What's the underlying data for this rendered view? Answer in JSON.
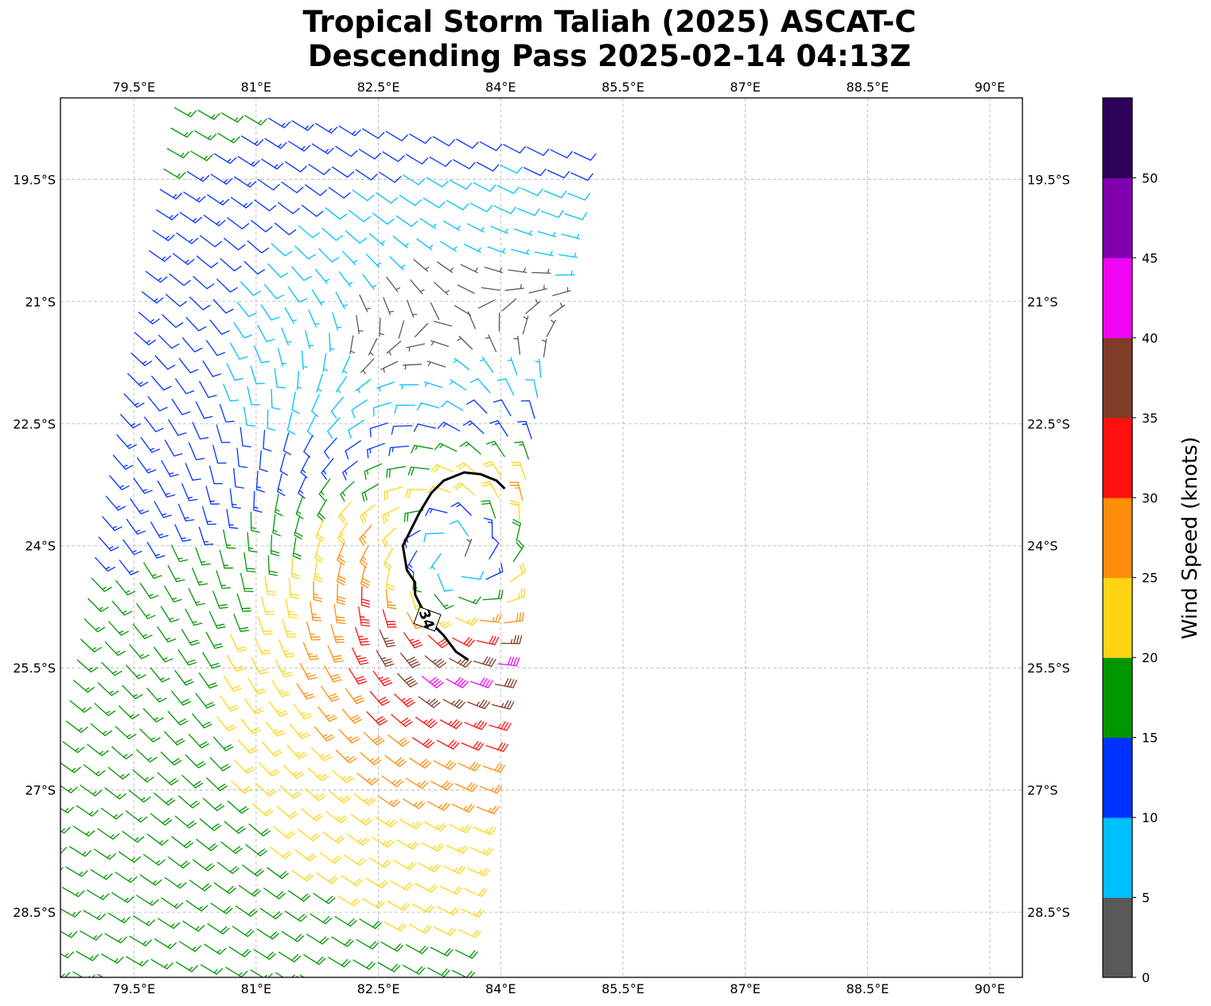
{
  "title": {
    "line1": "Tropical Storm Taliah (2025) ASCAT-C",
    "line2": "Descending Pass 2025-02-14 04:13Z"
  },
  "chart_data": {
    "type": "wind-barb-map",
    "title": "Tropical Storm Taliah (2025) ASCAT-C Descending Pass 2025-02-14 04:13Z",
    "lon_range": [
      78.6,
      90.4
    ],
    "lat_range": [
      -29.3,
      -18.5
    ],
    "x_ticks": [
      "79.5°E",
      "81°E",
      "82.5°E",
      "84°E",
      "85.5°E",
      "87°E",
      "88.5°E",
      "90°E"
    ],
    "x_tick_values": [
      79.5,
      81,
      82.5,
      84,
      85.5,
      87,
      88.5,
      90
    ],
    "y_ticks": [
      "19.5°S",
      "21°S",
      "22.5°S",
      "24°S",
      "25.5°S",
      "27°S",
      "28.5°S"
    ],
    "y_tick_values": [
      -19.5,
      -21,
      -22.5,
      -24,
      -25.5,
      -27,
      -28.5
    ],
    "grid": true,
    "units": "knots",
    "center": [
      83.5,
      -24.4
    ],
    "swath": {
      "top_lat": -18.5,
      "bottom_lat": -29.3,
      "left_edge_top_lon": 80.0,
      "left_edge_bottom_lon": 78.1,
      "right_edge_top_lon": 84.9,
      "right_edge_bottom_lon": 83.3
    },
    "contour": {
      "level": 34,
      "label": "34",
      "points": [
        [
          83.6,
          -25.4
        ],
        [
          83.45,
          -25.3
        ],
        [
          83.3,
          -25.1
        ],
        [
          83.1,
          -24.9
        ],
        [
          82.95,
          -24.6
        ],
        [
          82.95,
          -24.45
        ],
        [
          82.85,
          -24.3
        ],
        [
          82.8,
          -24.0
        ],
        [
          82.9,
          -23.8
        ],
        [
          83.0,
          -23.6
        ],
        [
          83.15,
          -23.35
        ],
        [
          83.3,
          -23.2
        ],
        [
          83.55,
          -23.1
        ],
        [
          83.75,
          -23.12
        ],
        [
          83.95,
          -23.2
        ],
        [
          84.05,
          -23.3
        ]
      ]
    },
    "colorbar": {
      "label": "Wind Speed (knots)",
      "ticks": [
        "0",
        "5",
        "10",
        "15",
        "20",
        "25",
        "30",
        "35",
        "40",
        "45",
        "50"
      ],
      "bins": [
        {
          "min": 0,
          "max": 5,
          "color": "#595959"
        },
        {
          "min": 5,
          "max": 10,
          "color": "#00bfff"
        },
        {
          "min": 10,
          "max": 15,
          "color": "#0033ff"
        },
        {
          "min": 15,
          "max": 20,
          "color": "#009600"
        },
        {
          "min": 20,
          "max": 25,
          "color": "#ffd414"
        },
        {
          "min": 25,
          "max": 30,
          "color": "#ff8c0a"
        },
        {
          "min": 30,
          "max": 35,
          "color": "#ff1010"
        },
        {
          "min": 35,
          "max": 40,
          "color": "#803c28"
        },
        {
          "min": 40,
          "max": 45,
          "color": "#f205f2"
        },
        {
          "min": 45,
          "max": 50,
          "color": "#8000b0"
        },
        {
          "min": 50,
          "max": 55,
          "color": "#2d0059"
        }
      ]
    }
  }
}
